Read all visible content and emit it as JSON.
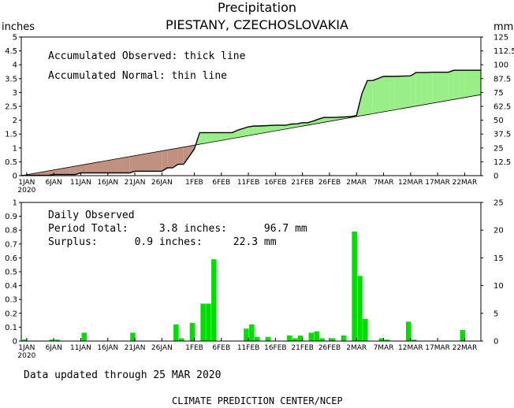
{
  "header": {
    "title": "Precipitation",
    "subtitle": "PIESTANY, CZECHOSLOVAKIA",
    "left_unit": "inches",
    "right_unit": "mm"
  },
  "top_panel": {
    "legend_observed": "Accumulated Observed: thick line",
    "legend_normal": "Accumulated Normal: thin line"
  },
  "bottom_panel": {
    "label_daily": "Daily Observed",
    "label_period": "Period Total:     3.8 inches:      96.7 mm",
    "label_surplus": "Surplus:      0.9 inches:     22.3 mm"
  },
  "footer": {
    "updated": "Data updated through 25 MAR 2020",
    "credit": "CLIMATE PREDICTION CENTER/NCEP"
  },
  "colors": {
    "surplus_fill": "#99ee88",
    "deficit_fill": "#c09080",
    "bar": "#00dd00",
    "line": "#000000"
  },
  "chart_data": [
    {
      "type": "area",
      "title": "Accumulated Precipitation",
      "ylabel": "inches",
      "y2label": "mm",
      "x_ticks": [
        "1JAN",
        "6JAN",
        "11JAN",
        "16JAN",
        "21JAN",
        "26JAN",
        "1FEB",
        "6FEB",
        "11FEB",
        "16FEB",
        "21FEB",
        "26FEB",
        "2MAR",
        "7MAR",
        "12MAR",
        "17MAR",
        "22MAR"
      ],
      "x_tick_days": [
        1,
        6,
        11,
        16,
        21,
        26,
        32,
        37,
        42,
        47,
        52,
        57,
        62,
        67,
        72,
        77,
        82
      ],
      "year_label": "2020",
      "x_range": [
        0,
        85
      ],
      "ylim": [
        0,
        5
      ],
      "y_ticks": [
        "0",
        "0.5",
        "1",
        "1.5",
        "2",
        "2.5",
        "3",
        "3.5",
        "4",
        "4.5",
        "5"
      ],
      "y2_ticks": [
        "0",
        "12.5",
        "25",
        "37.5",
        "50",
        "62.5",
        "75",
        "87.5",
        "100",
        "112.5",
        "125"
      ],
      "series": [
        {
          "name": "Accumulated Observed",
          "x": [
            0,
            1,
            2,
            3,
            5,
            6,
            7,
            9,
            10,
            11,
            12,
            20,
            21,
            25,
            26,
            27,
            28,
            29,
            30,
            31,
            32,
            33,
            34,
            35,
            39,
            40,
            42,
            43,
            44,
            47,
            48,
            49,
            50,
            51,
            52,
            53,
            54,
            55,
            56,
            57,
            58,
            59,
            61,
            62,
            63,
            64,
            65,
            67,
            68,
            69,
            72,
            73,
            74,
            75,
            76,
            79,
            80,
            81,
            82,
            85
          ],
          "y": [
            0.0,
            0.01,
            0.01,
            0.01,
            0.01,
            0.04,
            0.04,
            0.04,
            0.04,
            0.1,
            0.1,
            0.1,
            0.16,
            0.16,
            0.16,
            0.28,
            0.28,
            0.41,
            0.41,
            0.68,
            0.96,
            1.55,
            1.55,
            1.55,
            1.55,
            1.64,
            1.76,
            1.79,
            1.79,
            1.82,
            1.82,
            1.82,
            1.86,
            1.87,
            1.91,
            1.91,
            1.97,
            2.04,
            2.1,
            2.1,
            2.1,
            2.11,
            2.13,
            2.17,
            2.96,
            3.43,
            3.43,
            3.58,
            3.58,
            3.58,
            3.6,
            3.72,
            3.72,
            3.72,
            3.73,
            3.73,
            3.8,
            3.8,
            3.8,
            3.8
          ]
        },
        {
          "name": "Accumulated Normal",
          "x": [
            0,
            85
          ],
          "y": [
            0.0,
            2.92
          ]
        }
      ]
    },
    {
      "type": "bar",
      "title": "Daily Observed",
      "ylabel": "inches",
      "y2label": "mm",
      "x_ticks": [
        "1JAN",
        "6JAN",
        "11JAN",
        "16JAN",
        "21JAN",
        "26JAN",
        "1FEB",
        "6FEB",
        "11FEB",
        "16FEB",
        "21FEB",
        "26FEB",
        "2MAR",
        "7MAR",
        "12MAR",
        "17MAR",
        "22MAR"
      ],
      "year_label": "2020",
      "x_range": [
        0,
        85
      ],
      "ylim": [
        0,
        1
      ],
      "y_ticks": [
        "0",
        "0.1",
        "0.2",
        "0.3",
        "0.4",
        "0.5",
        "0.6",
        "0.7",
        "0.8",
        "0.9",
        "1"
      ],
      "y2_ticks": [
        "0",
        "5",
        "10",
        "15",
        "20",
        "25"
      ],
      "bars": {
        "day": [
          1,
          6,
          7,
          12,
          21,
          29,
          30,
          32,
          34,
          35,
          36,
          42,
          43,
          44,
          46,
          50,
          51,
          52,
          54,
          55,
          56,
          58,
          60,
          62,
          63,
          64,
          67,
          68,
          72,
          73,
          82
        ],
        "value": [
          0.01,
          0.01,
          0.01,
          0.06,
          0.06,
          0.12,
          0.02,
          0.13,
          0.27,
          0.27,
          0.59,
          0.09,
          0.12,
          0.03,
          0.03,
          0.04,
          0.02,
          0.04,
          0.06,
          0.07,
          0.02,
          0.02,
          0.04,
          0.79,
          0.47,
          0.16,
          0.02,
          0.01,
          0.14,
          0.01,
          0.08
        ]
      }
    }
  ]
}
